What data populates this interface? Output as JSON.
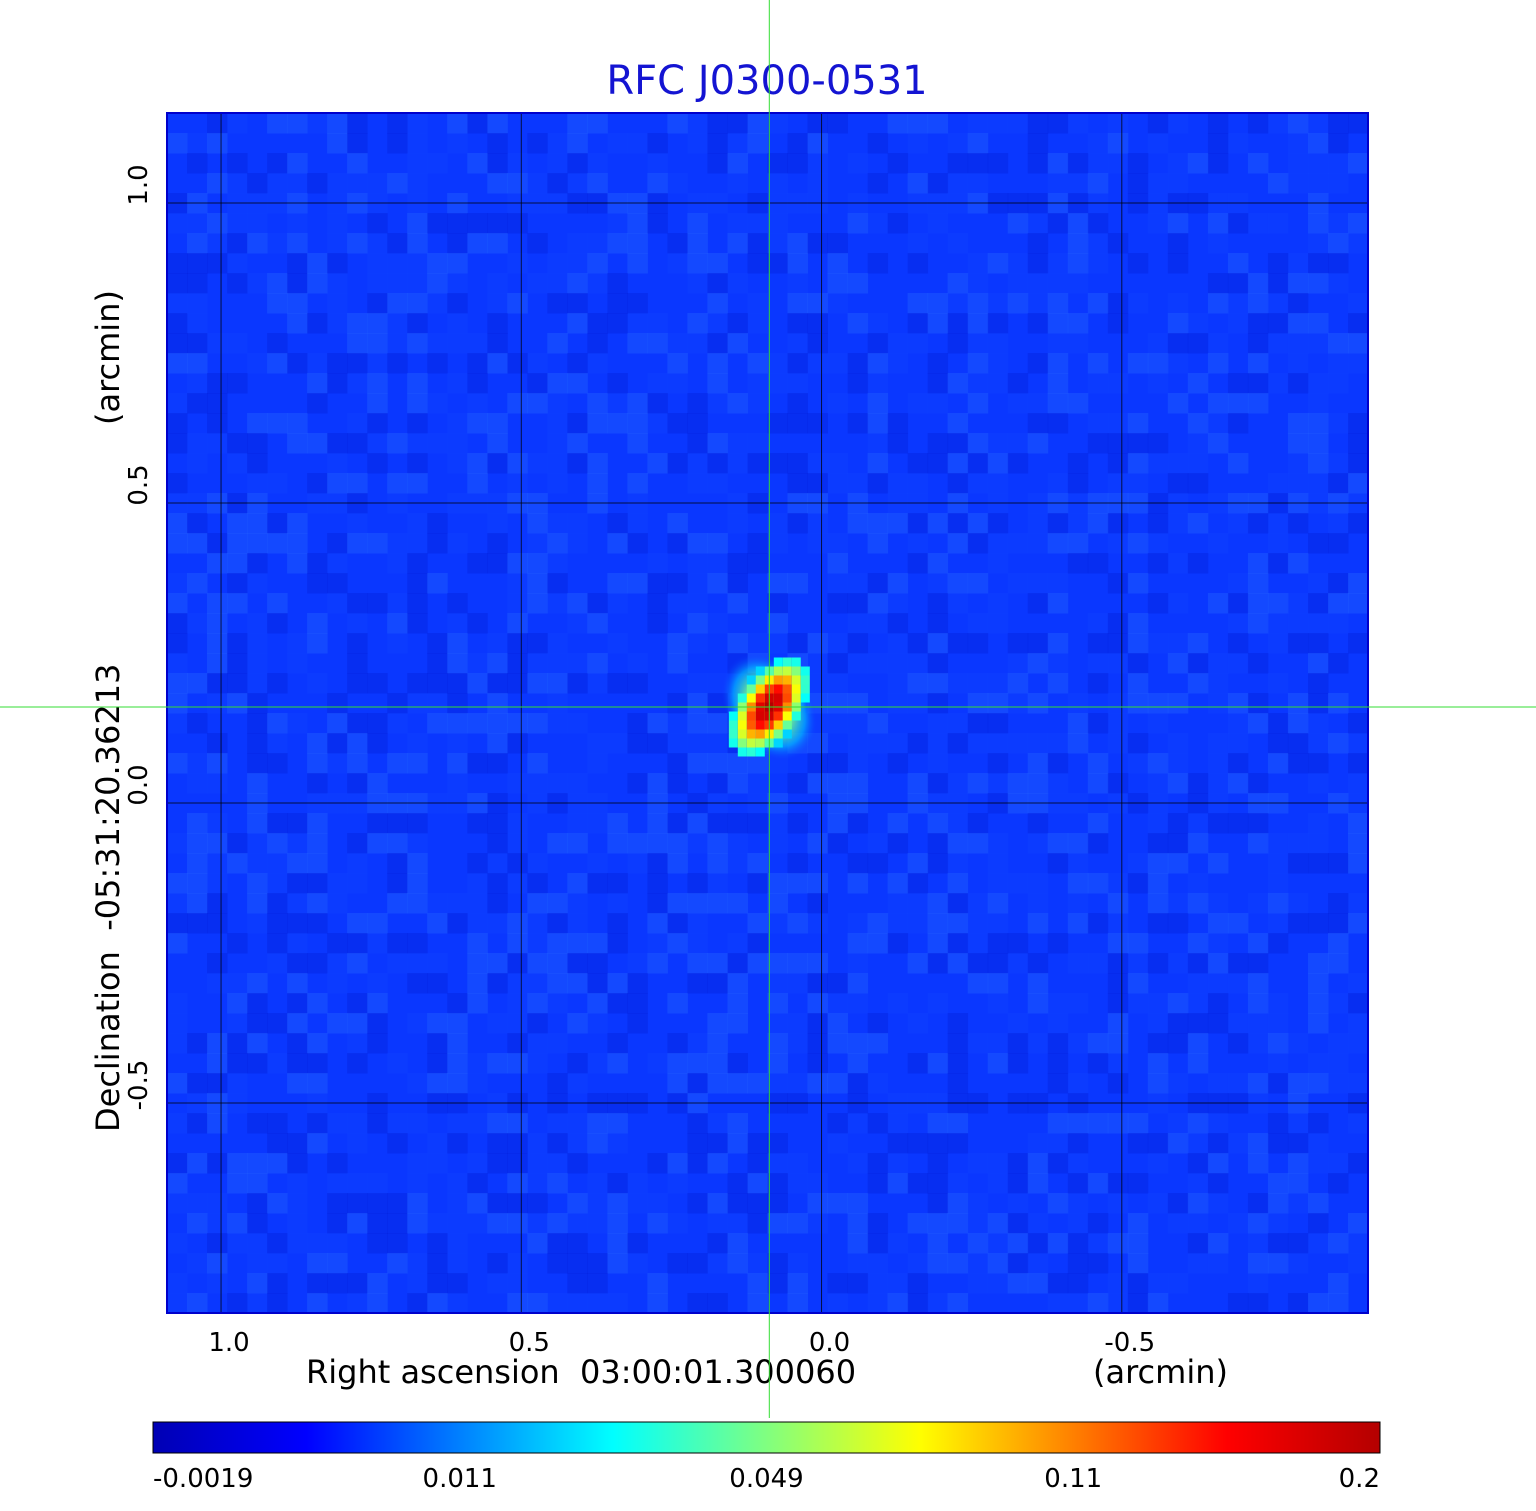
{
  "chart_data": {
    "type": "heatmap",
    "title": "RFC J0300-0531",
    "xlabel": "Right ascension  03:00:01.300060",
    "xunit": "(arcmin)",
    "ylabel": "Declination  -05:31:20.36213",
    "yunit": "(arcmin)",
    "xlim": [
      1.09,
      -0.91
    ],
    "ylim": [
      -0.85,
      1.15
    ],
    "x_ticks": [
      {
        "value": 1.0,
        "label": "1.0"
      },
      {
        "value": 0.5,
        "label": "0.5"
      },
      {
        "value": 0.0,
        "label": "0.0"
      },
      {
        "value": -0.5,
        "label": "-0.5"
      }
    ],
    "y_ticks": [
      {
        "value": 1.0,
        "label": "1.0"
      },
      {
        "value": 0.5,
        "label": "0.5"
      },
      {
        "value": 0.0,
        "label": "0.0"
      },
      {
        "value": -0.5,
        "label": "-0.5"
      }
    ],
    "grid": true,
    "crosshair": {
      "x": 0.087,
      "y": 0.16,
      "color": "#33dd33"
    },
    "peak": {
      "x": 0.087,
      "y": 0.16,
      "value": 0.2
    },
    "background_level": 0.003,
    "colormap": "jet",
    "colorbar": {
      "ticks": [
        {
          "value": -0.0019,
          "label": "-0.0019"
        },
        {
          "value": 0.011,
          "label": "0.011"
        },
        {
          "value": 0.049,
          "label": "0.049"
        },
        {
          "value": 0.11,
          "label": "0.11"
        },
        {
          "value": 0.2,
          "label": "0.2"
        }
      ],
      "range": [
        -0.0019,
        0.2
      ],
      "stops": [
        "#0000b4",
        "#0000ff",
        "#0080ff",
        "#00ffff",
        "#80ff80",
        "#ffff00",
        "#ff8000",
        "#ff0000",
        "#b40000"
      ]
    }
  }
}
